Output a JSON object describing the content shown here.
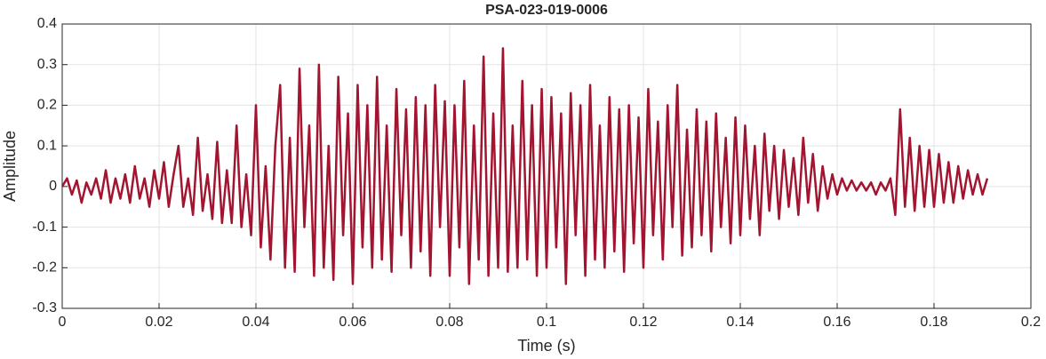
{
  "chart_data": {
    "type": "line",
    "title": "PSA-023-019-0006",
    "xlabel": "Time (s)",
    "ylabel": "Amplitude",
    "x": [
      0,
      0.001,
      0.002,
      0.003,
      0.004,
      0.005,
      0.006,
      0.007,
      0.008,
      0.009,
      0.01,
      0.011,
      0.012,
      0.013,
      0.014,
      0.015,
      0.016,
      0.017,
      0.018,
      0.019,
      0.02,
      0.021,
      0.022,
      0.023,
      0.024,
      0.025,
      0.026,
      0.027,
      0.028,
      0.029,
      0.03,
      0.031,
      0.032,
      0.033,
      0.034,
      0.035,
      0.036,
      0.037,
      0.038,
      0.039,
      0.04,
      0.041,
      0.042,
      0.043,
      0.044,
      0.045,
      0.046,
      0.047,
      0.048,
      0.049,
      0.05,
      0.051,
      0.052,
      0.053,
      0.054,
      0.055,
      0.056,
      0.057,
      0.058,
      0.059,
      0.06,
      0.061,
      0.062,
      0.063,
      0.064,
      0.065,
      0.066,
      0.067,
      0.068,
      0.069,
      0.07,
      0.071,
      0.072,
      0.073,
      0.074,
      0.075,
      0.076,
      0.077,
      0.078,
      0.079,
      0.08,
      0.081,
      0.082,
      0.083,
      0.084,
      0.085,
      0.086,
      0.087,
      0.088,
      0.089,
      0.09,
      0.091,
      0.092,
      0.093,
      0.094,
      0.095,
      0.096,
      0.097,
      0.098,
      0.099,
      0.1,
      0.101,
      0.102,
      0.103,
      0.104,
      0.105,
      0.106,
      0.107,
      0.108,
      0.109,
      0.11,
      0.111,
      0.112,
      0.113,
      0.114,
      0.115,
      0.116,
      0.117,
      0.118,
      0.119,
      0.12,
      0.121,
      0.122,
      0.123,
      0.124,
      0.125,
      0.126,
      0.127,
      0.128,
      0.129,
      0.13,
      0.131,
      0.132,
      0.133,
      0.134,
      0.135,
      0.136,
      0.137,
      0.138,
      0.139,
      0.14,
      0.141,
      0.142,
      0.143,
      0.144,
      0.145,
      0.146,
      0.147,
      0.148,
      0.149,
      0.15,
      0.151,
      0.152,
      0.153,
      0.154,
      0.155,
      0.156,
      0.157,
      0.158,
      0.159,
      0.16,
      0.161,
      0.162,
      0.163,
      0.164,
      0.165,
      0.166,
      0.167,
      0.168,
      0.169,
      0.17,
      0.171,
      0.172,
      0.173,
      0.174,
      0.175,
      0.176,
      0.177,
      0.178,
      0.179,
      0.18,
      0.181,
      0.182,
      0.183,
      0.184,
      0.185,
      0.186,
      0.187,
      0.188,
      0.189,
      0.19,
      0.191
    ],
    "series": [
      {
        "name": "Amplitude",
        "color": "#a2142f",
        "values": [
          0,
          0.02,
          -0.02,
          0.015,
          -0.04,
          0.01,
          -0.02,
          0.02,
          -0.03,
          0.04,
          -0.04,
          0.02,
          -0.03,
          0.03,
          -0.04,
          0.05,
          -0.03,
          0.02,
          -0.05,
          0.04,
          -0.03,
          0.06,
          -0.05,
          0.03,
          0.1,
          -0.05,
          0.02,
          -0.07,
          0.12,
          -0.06,
          0.03,
          -0.08,
          0.11,
          -0.09,
          0.04,
          -0.09,
          0.15,
          -0.1,
          0.03,
          -0.12,
          0.2,
          -0.15,
          0.05,
          -0.18,
          0.1,
          0.25,
          -0.2,
          0.12,
          -0.21,
          0.29,
          -0.1,
          0.15,
          -0.22,
          0.3,
          -0.2,
          0.1,
          -0.23,
          0.27,
          -0.12,
          0.18,
          -0.24,
          0.25,
          -0.15,
          0.2,
          -0.2,
          0.27,
          -0.18,
          0.15,
          -0.21,
          0.24,
          -0.12,
          0.19,
          -0.2,
          0.22,
          -0.16,
          0.2,
          -0.22,
          0.25,
          -0.1,
          0.21,
          -0.22,
          0.2,
          -0.15,
          0.26,
          -0.24,
          0.15,
          -0.18,
          0.32,
          -0.22,
          0.18,
          -0.2,
          0.34,
          -0.21,
          0.15,
          -0.2,
          0.26,
          -0.18,
          0.2,
          -0.22,
          0.24,
          -0.2,
          0.22,
          -0.15,
          0.18,
          -0.24,
          0.23,
          -0.12,
          0.2,
          -0.22,
          0.25,
          -0.18,
          0.15,
          -0.2,
          0.22,
          -0.16,
          0.19,
          -0.21,
          0.2,
          -0.14,
          0.17,
          -0.2,
          0.24,
          -0.12,
          0.16,
          -0.18,
          0.2,
          -0.1,
          0.25,
          -0.17,
          0.14,
          -0.15,
          0.19,
          -0.12,
          0.16,
          -0.16,
          0.18,
          -0.1,
          0.12,
          -0.14,
          0.17,
          -0.12,
          0.15,
          -0.08,
          0.1,
          -0.12,
          0.13,
          -0.06,
          0.1,
          -0.08,
          0.09,
          -0.05,
          0.07,
          -0.07,
          0.12,
          -0.04,
          0.08,
          -0.06,
          0.05,
          -0.03,
          0.03,
          -0.02,
          0.02,
          -0.01,
          0.015,
          -0.01,
          0.01,
          -0.01,
          0.01,
          -0.02,
          0.01,
          -0.01,
          0.02,
          -0.07,
          0.19,
          -0.05,
          0.12,
          -0.06,
          0.1,
          -0.05,
          0.09,
          -0.05,
          0.08,
          -0.04,
          0.06,
          -0.04,
          0.05,
          -0.03,
          0.04,
          -0.02,
          0.03,
          -0.02,
          0.02
        ]
      }
    ],
    "xlim": [
      0,
      0.2
    ],
    "xticks": [
      0,
      0.02,
      0.04,
      0.06,
      0.08,
      0.1,
      0.12,
      0.14,
      0.16,
      0.18,
      0.2
    ],
    "ylim": [
      -0.3,
      0.4
    ],
    "yticks": [
      -0.3,
      -0.2,
      -0.1,
      0,
      0.1,
      0.2,
      0.3,
      0.4
    ],
    "grid": true
  }
}
